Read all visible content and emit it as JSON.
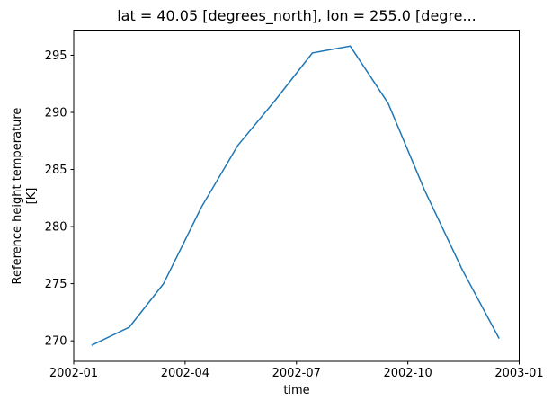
{
  "figure": {
    "background": "#ffffff",
    "title": "lat = 40.05 [degrees_north], lon = 255.0 [degre...",
    "xlabel": "time",
    "ylabel_line1": "Reference height temperature",
    "ylabel_line2": "[K]"
  },
  "chart_data": {
    "type": "line",
    "title": "lat = 40.05 [degrees_north], lon = 255.0 [degre...",
    "xlabel": "time",
    "ylabel": "Reference height temperature [K]",
    "grid": false,
    "legend_position": "none",
    "background": "#ffffff",
    "axes_color": "#000000",
    "xlim_months_from_2002_01": [
      0,
      12
    ],
    "ylim": [
      268.2,
      297.2
    ],
    "x_ticks": {
      "positions_months": [
        0,
        3,
        6,
        9,
        12
      ],
      "labels": [
        "2002-01",
        "2002-04",
        "2002-07",
        "2002-10",
        "2003-01"
      ]
    },
    "y_ticks": {
      "values": [
        270,
        275,
        280,
        285,
        290,
        295
      ],
      "labels": [
        "270",
        "275",
        "280",
        "285",
        "290",
        "295"
      ]
    },
    "series": [
      {
        "name": "Reference height temperature",
        "color": "#1f77b4",
        "line_width": 1.5,
        "markers": false,
        "x_dates": [
          "2002-01-15",
          "2002-02-15",
          "2002-03-15",
          "2002-04-15",
          "2002-05-15",
          "2002-06-15",
          "2002-07-15",
          "2002-08-15",
          "2002-09-15",
          "2002-10-15",
          "2002-11-15",
          "2002-12-15"
        ],
        "x_months_from_2002_01": [
          0.48,
          1.5,
          2.42,
          3.44,
          4.42,
          5.44,
          6.43,
          7.45,
          8.47,
          9.45,
          10.47,
          11.46
        ],
        "values_K": [
          269.6,
          271.2,
          275.0,
          281.7,
          287.1,
          291.1,
          295.2,
          295.8,
          290.8,
          283.2,
          276.2,
          270.2
        ]
      }
    ]
  }
}
